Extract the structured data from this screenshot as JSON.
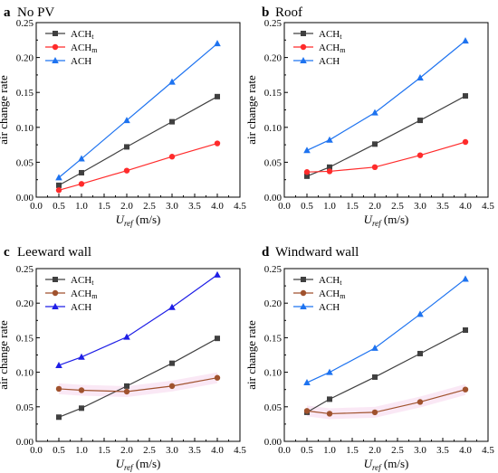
{
  "chart_data": [
    {
      "type": "line",
      "panel_letter": "a",
      "title": "No PV",
      "xlabel_main": "U",
      "xlabel_sub": "ref",
      "xlabel_unit": " (m/s)",
      "ylabel": "air change rate",
      "xlim": [
        0.0,
        4.5
      ],
      "ylim": [
        0.0,
        0.25
      ],
      "xticks": [
        "0.0",
        "0.5",
        "1.0",
        "1.5",
        "2.0",
        "2.5",
        "3.0",
        "3.5",
        "4.0",
        "4.5"
      ],
      "yticks": [
        "0.00",
        "0.05",
        "0.10",
        "0.15",
        "0.20",
        "0.25"
      ],
      "x": [
        0.5,
        1.0,
        2.0,
        3.0,
        4.0
      ],
      "legend_position": "top-left",
      "series": [
        {
          "name_main": "ACH",
          "name_sub": "t",
          "color": "#404040",
          "marker": "square",
          "values": [
            0.017,
            0.035,
            0.072,
            0.108,
            0.144
          ]
        },
        {
          "name_main": "ACH",
          "name_sub": "m",
          "color": "#ff2b2b",
          "marker": "circle",
          "values": [
            0.01,
            0.019,
            0.038,
            0.058,
            0.077
          ]
        },
        {
          "name_main": "ACH",
          "name_sub": "",
          "color": "#1e73f0",
          "marker": "triangle",
          "values": [
            0.028,
            0.055,
            0.11,
            0.165,
            0.22
          ]
        }
      ]
    },
    {
      "type": "line",
      "panel_letter": "b",
      "title": "Roof",
      "xlabel_main": "U",
      "xlabel_sub": "ref",
      "xlabel_unit": " (m/s)",
      "ylabel": "air change rate",
      "xlim": [
        0.0,
        4.5
      ],
      "ylim": [
        0.0,
        0.25
      ],
      "xticks": [
        "0.0",
        "0.5",
        "1.0",
        "1.5",
        "2.0",
        "2.5",
        "3.0",
        "3.5",
        "4.0",
        "4.5"
      ],
      "yticks": [
        "0.00",
        "0.05",
        "0.10",
        "0.15",
        "0.20",
        "0.25"
      ],
      "x": [
        0.5,
        1.0,
        2.0,
        3.0,
        4.0
      ],
      "legend_position": "top-left",
      "series": [
        {
          "name_main": "ACH",
          "name_sub": "t",
          "color": "#404040",
          "marker": "square",
          "values": [
            0.03,
            0.043,
            0.076,
            0.11,
            0.145
          ]
        },
        {
          "name_main": "ACH",
          "name_sub": "m",
          "color": "#ff2b2b",
          "marker": "circle",
          "values": [
            0.036,
            0.037,
            0.043,
            0.06,
            0.079
          ]
        },
        {
          "name_main": "ACH",
          "name_sub": "",
          "color": "#1e73f0",
          "marker": "triangle",
          "values": [
            0.067,
            0.082,
            0.121,
            0.171,
            0.224
          ]
        }
      ]
    },
    {
      "type": "line",
      "panel_letter": "c",
      "title": "Leeward wall",
      "xlabel_main": "U",
      "xlabel_sub": "ref",
      "xlabel_unit": " (m/s)",
      "ylabel": "air change rate",
      "xlim": [
        0.0,
        4.5
      ],
      "ylim": [
        0.0,
        0.25
      ],
      "xticks": [
        "0.0",
        "0.5",
        "1.0",
        "1.5",
        "2.0",
        "2.5",
        "3.0",
        "3.5",
        "4.0",
        "4.5"
      ],
      "yticks": [
        "0.00",
        "0.05",
        "0.10",
        "0.15",
        "0.20",
        "0.25"
      ],
      "x": [
        0.5,
        1.0,
        2.0,
        3.0,
        4.0
      ],
      "legend_position": "top-left",
      "series": [
        {
          "name_main": "ACH",
          "name_sub": "t",
          "color": "#404040",
          "marker": "square",
          "values": [
            0.035,
            0.048,
            0.08,
            0.113,
            0.149
          ]
        },
        {
          "name_main": "ACH",
          "name_sub": "m",
          "color": "#a0522d",
          "marker": "circle",
          "values": [
            0.076,
            0.074,
            0.072,
            0.08,
            0.092
          ]
        },
        {
          "name_main": "ACH",
          "name_sub": "",
          "color": "#1e1ee6",
          "marker": "triangle",
          "values": [
            0.11,
            0.122,
            0.151,
            0.194,
            0.241
          ]
        }
      ]
    },
    {
      "type": "line",
      "panel_letter": "d",
      "title": "Windward wall",
      "xlabel_main": "U",
      "xlabel_sub": "ref",
      "xlabel_unit": " (m/s)",
      "ylabel": "air change rate",
      "xlim": [
        0.0,
        4.5
      ],
      "ylim": [
        0.0,
        0.25
      ],
      "xticks": [
        "0.0",
        "0.5",
        "1.0",
        "1.5",
        "2.0",
        "2.5",
        "3.0",
        "3.5",
        "4.0",
        "4.5"
      ],
      "yticks": [
        "0.00",
        "0.05",
        "0.10",
        "0.15",
        "0.20",
        "0.25"
      ],
      "x": [
        0.5,
        1.0,
        2.0,
        3.0,
        4.0
      ],
      "legend_position": "top-left",
      "series": [
        {
          "name_main": "ACH",
          "name_sub": "t",
          "color": "#404040",
          "marker": "square",
          "values": [
            0.042,
            0.061,
            0.093,
            0.127,
            0.161
          ]
        },
        {
          "name_main": "ACH",
          "name_sub": "m",
          "color": "#a0522d",
          "marker": "circle",
          "values": [
            0.044,
            0.04,
            0.042,
            0.057,
            0.075
          ]
        },
        {
          "name_main": "ACH",
          "name_sub": "",
          "color": "#1e73f0",
          "marker": "triangle",
          "values": [
            0.085,
            0.1,
            0.135,
            0.184,
            0.235
          ]
        }
      ]
    }
  ]
}
